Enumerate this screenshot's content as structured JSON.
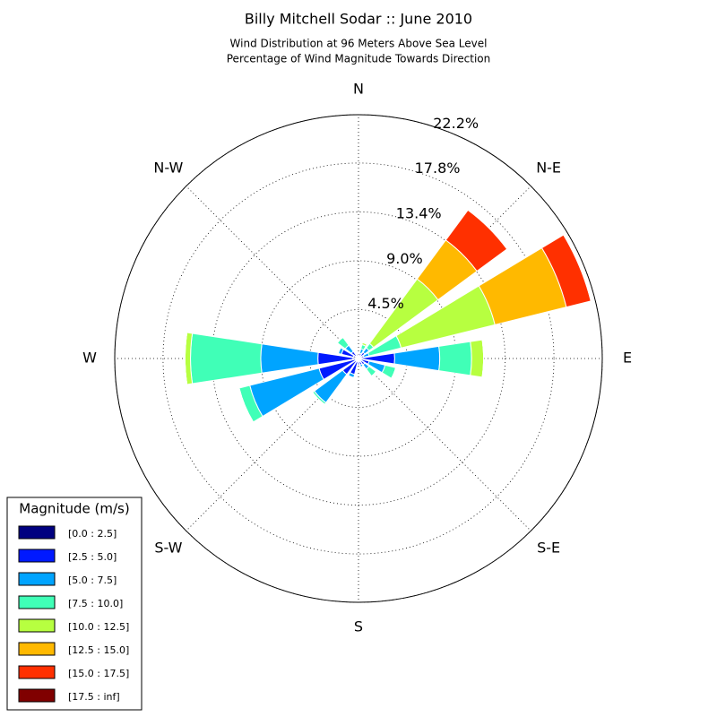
{
  "chart_data": {
    "type": "windrose",
    "title": "Billy Mitchell Sodar :: June 2010",
    "subtitle": [
      "Wind Distribution at 96 Meters Above Sea Level",
      "Percentage of Wind Magnitude Towards Direction"
    ],
    "categories": [
      "N",
      null,
      "N-E",
      null,
      "E",
      null,
      "S-E",
      null,
      "S",
      null,
      "S-W",
      null,
      "W",
      null,
      "N-W",
      null
    ],
    "rlim": [
      0,
      22.2
    ],
    "rticks": [
      {
        "value": 4.45,
        "label": "4.5%"
      },
      {
        "value": 8.9,
        "label": "9.0%"
      },
      {
        "value": 13.35,
        "label": "13.4%"
      },
      {
        "value": 17.8,
        "label": "17.8%"
      },
      {
        "value": 22.2,
        "label": "22.2%"
      }
    ],
    "grid": true,
    "legend": {
      "title": "Magnitude (m/s)",
      "loc": "lower left"
    },
    "series": [
      {
        "name": "[0.0 : 2.5]",
        "color": "#000080",
        "values": [
          0.2,
          0.2,
          0.2,
          0.1,
          0.3,
          0.2,
          0.2,
          0.3,
          0.3,
          0.3,
          0.3,
          0.3,
          0.5,
          0.5,
          0.3,
          0.2
        ]
      },
      {
        "name": "[2.5 : 5.0]",
        "color": "#0019ff",
        "values": [
          0.1,
          0.3,
          0.5,
          0.4,
          3.0,
          0.8,
          0.5,
          0.3,
          0.3,
          1.2,
          1.5,
          3.4,
          3.2,
          1.1,
          0.5,
          0.2
        ]
      },
      {
        "name": "[5.0 : 7.5]",
        "color": "#00a4ff",
        "values": [
          0,
          0.4,
          0.5,
          0.5,
          4.1,
          1.5,
          0.5,
          0.2,
          0,
          0.3,
          3.2,
          6.5,
          5.2,
          0.3,
          0.7,
          0.1
        ]
      },
      {
        "name": "[7.5 : 10.0]",
        "color": "#40ffb7",
        "values": [
          0,
          0.4,
          0.5,
          3.0,
          2.9,
          1.0,
          0.8,
          0,
          0,
          0,
          0.2,
          1.0,
          6.4,
          0,
          0.9,
          0
        ]
      },
      {
        "name": "[10.0 : 12.5]",
        "color": "#b7ff40",
        "values": [
          0,
          0.2,
          7.3,
          8.8,
          1.1,
          0,
          0,
          0,
          0,
          0,
          0,
          0,
          0.5,
          0,
          0,
          0
        ]
      },
      {
        "name": "[12.5 : 15.0]",
        "color": "#ffb900",
        "values": [
          0,
          0,
          4.4,
          6.7,
          0,
          0,
          0,
          0,
          0,
          0,
          0,
          0,
          0,
          0,
          0,
          0
        ]
      },
      {
        "name": "[15.0 : 17.5]",
        "color": "#ff3000",
        "values": [
          0,
          0,
          3.4,
          2.3,
          0,
          0,
          0,
          0,
          0,
          0,
          0,
          0,
          0,
          0,
          0,
          0
        ]
      },
      {
        "name": "[17.5 : inf]",
        "color": "#800000",
        "values": [
          0,
          0,
          0,
          0,
          0,
          0,
          0,
          0,
          0,
          0,
          0,
          0,
          0,
          0,
          0,
          0
        ]
      }
    ]
  }
}
